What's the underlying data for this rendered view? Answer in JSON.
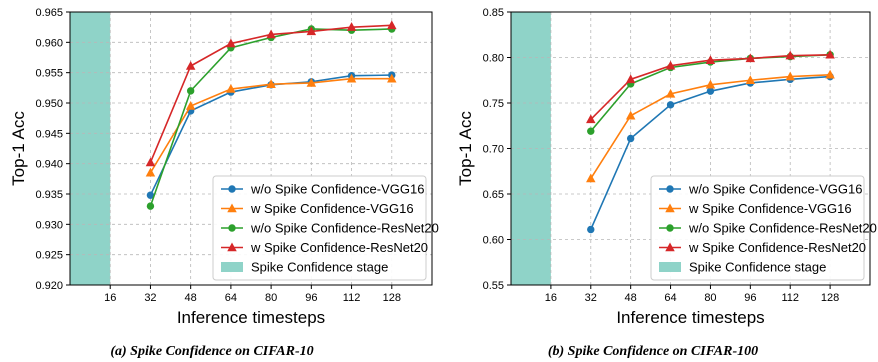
{
  "colors": {
    "vgg_wo": "#1f77b4",
    "vgg_w": "#ff7f0e",
    "res_wo": "#2ca02c",
    "res_w": "#d62728",
    "stage": "#8fd3c8"
  },
  "chart_data": [
    {
      "type": "line",
      "caption": "(a) Spike Confidence on CIFAR-10",
      "xlabel": "Inference timesteps",
      "ylabel": "Top-1 Acc",
      "x_ticks": [
        "16",
        "32",
        "48",
        "64",
        "80",
        "96",
        "112",
        "128"
      ],
      "y_ticks": [
        "0.920",
        "0.925",
        "0.930",
        "0.935",
        "0.940",
        "0.945",
        "0.950",
        "0.955",
        "0.960",
        "0.965"
      ],
      "xlim": [
        0,
        144
      ],
      "ylim": [
        0.92,
        0.965
      ],
      "grid": true,
      "legend_position": "lower-right",
      "shaded_region": {
        "label": "Spike Confidence stage",
        "x_from": 0,
        "x_to": 16
      },
      "x": [
        32,
        48,
        64,
        80,
        96,
        112,
        128
      ],
      "series": [
        {
          "name": "w/o Spike Confidence-VGG16",
          "marker": "circle",
          "color_key": "vgg_wo",
          "values": [
            0.9348,
            0.9487,
            0.9518,
            0.953,
            0.9535,
            0.9545,
            0.9546
          ]
        },
        {
          "name": "w Spike Confidence-VGG16",
          "marker": "triangle",
          "color_key": "vgg_w",
          "values": [
            0.9385,
            0.9495,
            0.9523,
            0.9531,
            0.9533,
            0.954,
            0.954
          ]
        },
        {
          "name": "w/o Spike Confidence-ResNet20",
          "marker": "circle",
          "color_key": "res_wo",
          "values": [
            0.933,
            0.952,
            0.9591,
            0.9608,
            0.9622,
            0.962,
            0.9622
          ]
        },
        {
          "name": "w Spike Confidence-ResNet20",
          "marker": "triangle",
          "color_key": "res_w",
          "values": [
            0.9402,
            0.9561,
            0.9598,
            0.9613,
            0.9618,
            0.9625,
            0.9628
          ]
        }
      ]
    },
    {
      "type": "line",
      "caption": "(b) Spike Confidence on CIFAR-100",
      "xlabel": "Inference timesteps",
      "ylabel": "Top-1 Acc",
      "x_ticks": [
        "16",
        "32",
        "48",
        "64",
        "80",
        "96",
        "112",
        "128"
      ],
      "y_ticks": [
        "0.55",
        "0.60",
        "0.65",
        "0.70",
        "0.75",
        "0.80",
        "0.85"
      ],
      "xlim": [
        0,
        144
      ],
      "ylim": [
        0.55,
        0.85
      ],
      "grid": true,
      "legend_position": "lower-right",
      "shaded_region": {
        "label": "Spike Confidence stage",
        "x_from": 0,
        "x_to": 16
      },
      "x": [
        32,
        48,
        64,
        80,
        96,
        112,
        128
      ],
      "series": [
        {
          "name": "w/o Spike Confidence-VGG16",
          "marker": "circle",
          "color_key": "vgg_wo",
          "values": [
            0.611,
            0.711,
            0.748,
            0.763,
            0.772,
            0.776,
            0.779
          ]
        },
        {
          "name": "w Spike Confidence-VGG16",
          "marker": "triangle",
          "color_key": "vgg_w",
          "values": [
            0.667,
            0.736,
            0.76,
            0.77,
            0.775,
            0.779,
            0.781
          ]
        },
        {
          "name": "w/o Spike Confidence-ResNet20",
          "marker": "circle",
          "color_key": "res_wo",
          "values": [
            0.719,
            0.771,
            0.789,
            0.795,
            0.799,
            0.801,
            0.803
          ]
        },
        {
          "name": "w Spike Confidence-ResNet20",
          "marker": "triangle",
          "color_key": "res_w",
          "values": [
            0.732,
            0.776,
            0.791,
            0.797,
            0.799,
            0.802,
            0.803
          ]
        }
      ]
    }
  ]
}
